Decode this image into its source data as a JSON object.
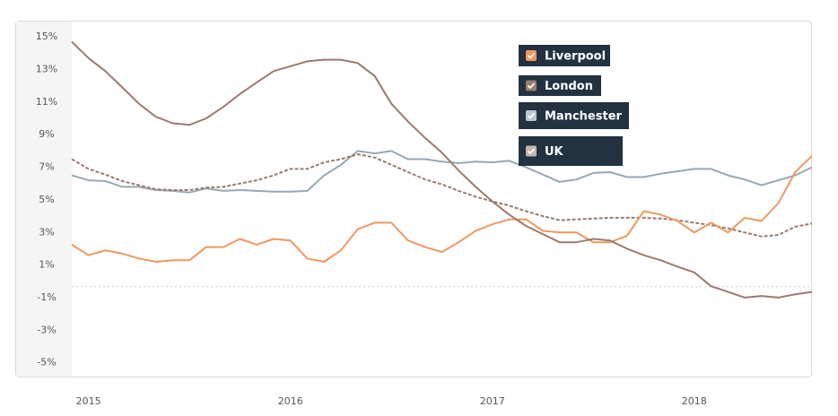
{
  "chart_data": {
    "type": "line",
    "x": [
      2014.917,
      2015.0,
      2015.083,
      2015.167,
      2015.25,
      2015.333,
      2015.417,
      2015.5,
      2015.583,
      2015.667,
      2015.75,
      2015.833,
      2015.917,
      2016.0,
      2016.083,
      2016.167,
      2016.25,
      2016.333,
      2016.417,
      2016.5,
      2016.583,
      2016.667,
      2016.75,
      2016.833,
      2016.917,
      2017.0,
      2017.083,
      2017.167,
      2017.25,
      2017.333,
      2017.417,
      2017.5,
      2017.583,
      2017.667,
      2017.75,
      2017.833,
      2017.917,
      2018.0,
      2018.083,
      2018.167,
      2018.25,
      2018.333,
      2018.417,
      2018.5,
      2018.583
    ],
    "series": [
      {
        "name": "Liverpool",
        "color": "#f0975f",
        "values": [
          2.25,
          1.6,
          1.9,
          1.7,
          1.4,
          1.2,
          1.3,
          1.3,
          2.1,
          2.1,
          2.6,
          2.25,
          2.6,
          2.5,
          1.4,
          1.2,
          1.9,
          3.2,
          3.6,
          3.6,
          2.5,
          2.1,
          1.8,
          2.4,
          3.1,
          3.5,
          3.8,
          3.8,
          3.1,
          3.0,
          3.0,
          2.4,
          2.4,
          2.8,
          4.3,
          4.1,
          3.7,
          3.0,
          3.6,
          3.0,
          3.9,
          3.7,
          4.8,
          6.7,
          7.7
        ]
      },
      {
        "name": "London",
        "color": "#9a7b6e",
        "values": [
          14.7,
          13.7,
          12.9,
          11.9,
          10.9,
          10.1,
          9.7,
          9.6,
          10.0,
          10.7,
          11.5,
          12.2,
          12.9,
          13.2,
          13.5,
          13.6,
          13.6,
          13.4,
          12.6,
          10.9,
          9.8,
          8.8,
          7.9,
          6.8,
          5.8,
          4.9,
          4.1,
          3.4,
          2.9,
          2.4,
          2.4,
          2.6,
          2.5,
          2.0,
          1.6,
          1.3,
          0.9,
          0.55,
          -0.3,
          -0.65,
          -1.0,
          -0.9,
          -1.0,
          -0.8,
          -0.65
        ]
      },
      {
        "name": "Manchester",
        "color": "#97a8b2",
        "values": [
          6.5,
          6.2,
          6.15,
          5.8,
          5.8,
          5.6,
          5.55,
          5.45,
          5.7,
          5.55,
          5.6,
          5.55,
          5.5,
          5.5,
          5.55,
          6.5,
          7.15,
          8.0,
          7.85,
          8.0,
          7.5,
          7.5,
          7.35,
          7.25,
          7.35,
          7.3,
          7.4,
          7.0,
          6.55,
          6.1,
          6.25,
          6.65,
          6.7,
          6.4,
          6.4,
          6.6,
          6.75,
          6.9,
          6.9,
          6.5,
          6.25,
          5.9,
          6.2,
          6.5,
          7.0
        ]
      },
      {
        "name": "UK",
        "color": "#9a7b6e",
        "dashed": true,
        "values": [
          7.5,
          6.9,
          6.55,
          6.15,
          5.9,
          5.65,
          5.6,
          5.6,
          5.75,
          5.8,
          6.0,
          6.2,
          6.5,
          6.9,
          6.9,
          7.3,
          7.5,
          7.8,
          7.6,
          7.15,
          6.7,
          6.25,
          5.95,
          5.55,
          5.2,
          4.9,
          4.65,
          4.3,
          4.0,
          3.75,
          3.8,
          3.85,
          3.9,
          3.9,
          3.9,
          3.85,
          3.75,
          3.6,
          3.45,
          3.25,
          3.0,
          2.75,
          2.85,
          3.35,
          3.55
        ]
      }
    ],
    "xlim": [
      2014.917,
      2018.583
    ],
    "xticks": [
      2015,
      2016,
      2017,
      2018
    ],
    "ylim": [
      -5.9,
      16
    ],
    "yticks": [
      {
        "value": 15,
        "label": "15%"
      },
      {
        "value": 13,
        "label": "13%"
      },
      {
        "value": 11,
        "label": "11%"
      },
      {
        "value": 9,
        "label": "9%"
      },
      {
        "value": 7,
        "label": "7%"
      },
      {
        "value": 5,
        "label": "5%"
      },
      {
        "value": 3,
        "label": "3%"
      },
      {
        "value": 1,
        "label": "1%"
      },
      {
        "value": -1,
        "label": "-1%"
      },
      {
        "value": -3,
        "label": "-3%"
      },
      {
        "value": -5,
        "label": "-5%"
      }
    ]
  }
}
